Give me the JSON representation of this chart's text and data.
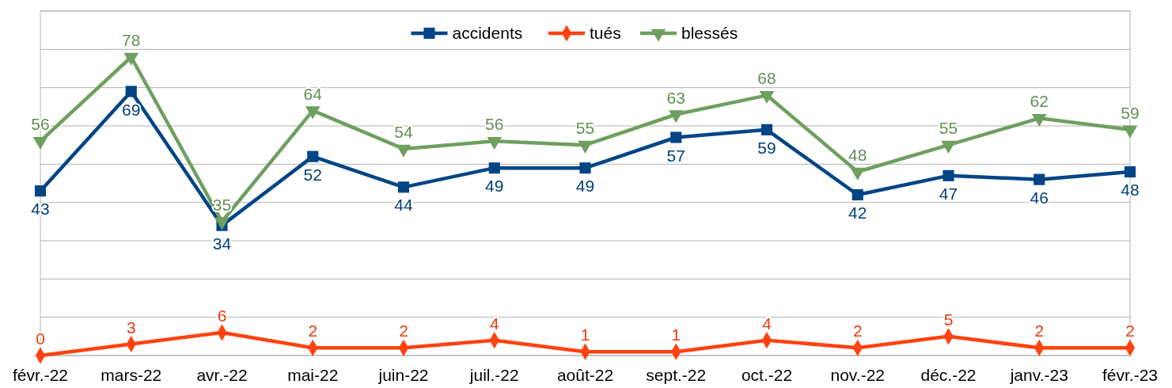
{
  "chart_data": {
    "type": "line",
    "categories": [
      "févr.-22",
      "mars-22",
      "avr.-22",
      "mai-22",
      "juin-22",
      "juil.-22",
      "août-22",
      "sept.-22",
      "oct.-22",
      "nov.-22",
      "déc.-22",
      "janv.-23",
      "févr.-23"
    ],
    "series": [
      {
        "name": "accidents",
        "color": "#004586",
        "marker": "square",
        "values": [
          43,
          69,
          34,
          52,
          44,
          49,
          49,
          57,
          59,
          42,
          47,
          46,
          48
        ]
      },
      {
        "name": "tués",
        "color": "#ff420e",
        "marker": "diamond",
        "values": [
          0,
          3,
          6,
          2,
          2,
          4,
          1,
          1,
          4,
          2,
          5,
          2,
          2
        ]
      },
      {
        "name": "blessés",
        "color": "#6f9f5f",
        "marker": "triangle",
        "values": [
          56,
          78,
          35,
          64,
          54,
          56,
          55,
          63,
          68,
          48,
          55,
          62,
          59
        ]
      }
    ],
    "ylim": [
      0,
      90
    ],
    "yticks": [
      {
        "value": 0,
        "label": null
      },
      {
        "value": 10,
        "label": null
      },
      {
        "value": 20,
        "label": null
      },
      {
        "value": 30,
        "label": null
      },
      {
        "value": 40,
        "label": null
      },
      {
        "value": 50,
        "label": null
      },
      {
        "value": 60,
        "label": null
      },
      {
        "value": 70,
        "label": null
      },
      {
        "value": 80,
        "label": null
      },
      {
        "value": 90,
        "label": null
      }
    ],
    "tick_labels": "x",
    "grid": "y",
    "legend": "top",
    "data_labels": true,
    "line_style": "solid"
  }
}
